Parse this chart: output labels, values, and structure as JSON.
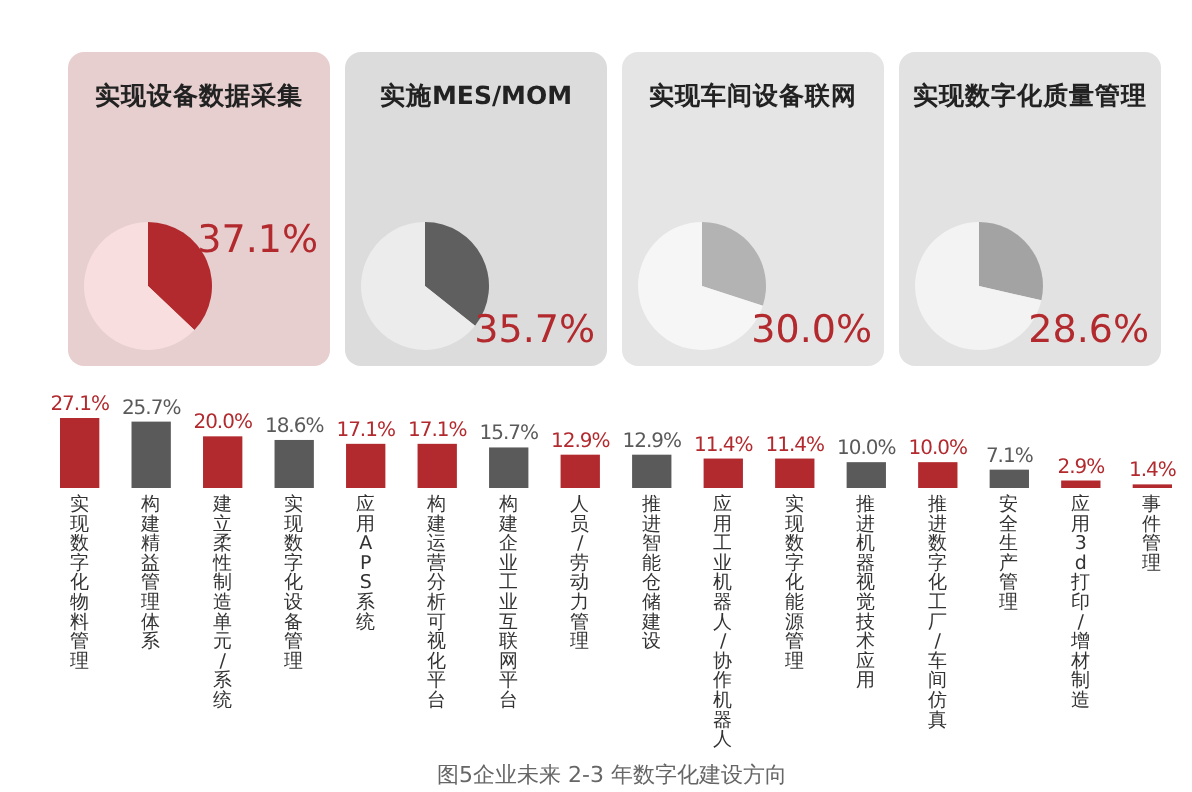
{
  "chart_data": [
    {
      "type": "pie",
      "title": "实现设备数据采集",
      "categories": [
        null,
        null
      ],
      "values": [
        37.1,
        62.9
      ],
      "colors": [
        "#b22a2e",
        "#f8dede"
      ],
      "value_labels": [
        "37.1%",
        null
      ]
    },
    {
      "type": "pie",
      "title": "实施MES/MOM",
      "categories": [
        null,
        null
      ],
      "values": [
        35.7,
        64.3
      ],
      "colors": [
        "#5f5f5f",
        "#ececec"
      ],
      "value_labels": [
        "35.7%",
        null
      ]
    },
    {
      "type": "pie",
      "title": "实现车间设备联网",
      "categories": [
        null,
        null
      ],
      "values": [
        30.0,
        70.0
      ],
      "colors": [
        "#b3b3b3",
        "#f6f6f6"
      ],
      "value_labels": [
        "30.0%",
        null
      ]
    },
    {
      "type": "pie",
      "title": "实现数字化质量管理",
      "categories": [
        null,
        null
      ],
      "values": [
        28.6,
        71.4
      ],
      "colors": [
        "#a3a3a3",
        "#f3f3f3"
      ],
      "value_labels": [
        "28.6%",
        null
      ]
    },
    {
      "type": "bar",
      "categories": [
        "实现数字化物料管理",
        "构建精益管理体系",
        "建立柔性制造单元/系统",
        "实现数字化设备管理",
        "应用APS系统",
        "构建运营分析可视化平台",
        "构建企业工业互联网平台",
        "人员/劳动力管理",
        "推进智能仓储建设",
        "应用工业机器人/协作机器人",
        "实现数字化能源管理",
        "推进机器视觉技术应用",
        "推进数字化工厂/车间仿真",
        "安全生产管理",
        "应用3d打印/增材制造",
        "事件管理"
      ],
      "values": [
        27.1,
        25.7,
        20.0,
        18.6,
        17.1,
        17.1,
        15.7,
        12.9,
        12.9,
        11.4,
        11.4,
        10.0,
        10.0,
        7.1,
        2.9,
        1.4
      ],
      "colors": [
        "#b22a2e",
        "#5a5a5a",
        "#b22a2e",
        "#5a5a5a",
        "#b22a2e",
        "#b22a2e",
        "#5a5a5a",
        "#b22a2e",
        "#5a5a5a",
        "#b22a2e",
        "#b22a2e",
        "#5a5a5a",
        "#b22a2e",
        "#5a5a5a",
        "#b22a2e",
        "#b22a2e"
      ],
      "value_labels": [
        "27.1%",
        "25.7%",
        "20.0%",
        "18.6%",
        "17.1%",
        "17.1%",
        "15.7%",
        "12.9%",
        "12.9%",
        "11.4%",
        "11.4%",
        "10.0%",
        "10.0%",
        "7.1%",
        "2.9%",
        "1.4%"
      ],
      "annotations": [
        "图5企业未来 2-3 年数字化建设方向"
      ]
    }
  ]
}
